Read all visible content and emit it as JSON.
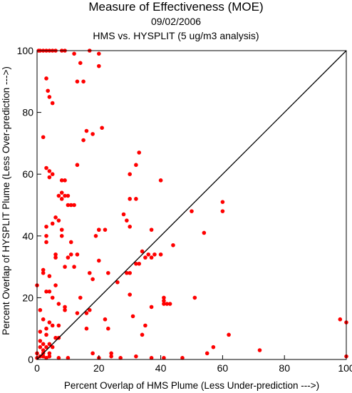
{
  "chart_data": {
    "type": "scatter",
    "title": "Measure of Effectiveness (MOE)",
    "subtitle_date": "09/02/2006",
    "subtitle_comparison": "HMS vs. HYSPLIT  (5 ug/m3 analysis)",
    "xlabel": "Percent Overlap of HMS Plume (Less Under-prediction --->)",
    "ylabel": "Percent Overlap of HYSPLIT Plume (Less Over-prediction --->)",
    "xlim": [
      0,
      100
    ],
    "ylim": [
      0,
      100
    ],
    "x_ticks": [
      "0",
      "20",
      "40",
      "60",
      "80",
      "100"
    ],
    "y_ticks": [
      "0",
      "20",
      "40",
      "60",
      "80",
      "100"
    ],
    "reference_line": "y = x",
    "grid": false,
    "point_color": "#ff0000",
    "series": [
      {
        "points": [
          [
            0.5,
            100
          ],
          [
            1,
            100
          ],
          [
            2,
            100
          ],
          [
            3,
            100
          ],
          [
            4,
            100
          ],
          [
            5,
            100
          ],
          [
            6,
            100
          ],
          [
            8,
            100
          ],
          [
            9,
            100
          ],
          [
            17,
            100
          ],
          [
            12,
            99
          ],
          [
            20,
            99
          ],
          [
            14,
            96
          ],
          [
            20,
            95
          ],
          [
            3,
            91
          ],
          [
            13,
            90
          ],
          [
            15,
            90
          ],
          [
            3.5,
            87
          ],
          [
            4,
            85
          ],
          [
            5,
            83
          ],
          [
            21,
            75
          ],
          [
            16,
            74
          ],
          [
            18,
            73
          ],
          [
            2,
            72
          ],
          [
            15,
            71
          ],
          [
            33,
            67
          ],
          [
            32,
            63
          ],
          [
            13,
            63
          ],
          [
            3,
            62
          ],
          [
            30,
            60
          ],
          [
            4,
            61
          ],
          [
            5,
            60
          ],
          [
            9,
            58
          ],
          [
            40,
            58
          ],
          [
            8,
            58
          ],
          [
            4,
            59
          ],
          [
            8,
            54
          ],
          [
            7,
            53
          ],
          [
            9,
            53
          ],
          [
            10,
            53
          ],
          [
            8,
            52
          ],
          [
            32,
            52
          ],
          [
            30,
            52
          ],
          [
            12,
            50
          ],
          [
            10,
            50
          ],
          [
            11,
            50
          ],
          [
            60,
            51
          ],
          [
            60,
            48
          ],
          [
            50,
            48
          ],
          [
            6,
            46
          ],
          [
            7,
            45
          ],
          [
            5,
            44
          ],
          [
            28,
            47
          ],
          [
            29,
            45
          ],
          [
            30,
            43
          ],
          [
            20,
            42
          ],
          [
            20,
            42
          ],
          [
            22,
            42
          ],
          [
            8,
            42
          ],
          [
            3,
            43
          ],
          [
            54,
            41
          ],
          [
            19,
            40
          ],
          [
            3,
            40
          ],
          [
            8,
            40
          ],
          [
            3,
            38
          ],
          [
            11,
            38
          ],
          [
            37,
            42
          ],
          [
            44,
            37
          ],
          [
            34,
            35
          ],
          [
            36,
            34
          ],
          [
            40,
            34
          ],
          [
            37,
            33
          ],
          [
            38,
            34
          ],
          [
            11,
            34
          ],
          [
            13,
            34
          ],
          [
            6,
            34
          ],
          [
            6,
            33
          ],
          [
            10,
            33
          ],
          [
            9,
            30
          ],
          [
            12,
            30
          ],
          [
            20,
            32
          ],
          [
            23,
            28
          ],
          [
            29,
            28
          ],
          [
            17,
            28
          ],
          [
            30,
            28
          ],
          [
            35,
            33
          ],
          [
            32,
            31
          ],
          [
            33,
            31
          ],
          [
            2,
            29
          ],
          [
            2,
            28
          ],
          [
            4,
            27
          ],
          [
            18,
            26
          ],
          [
            26,
            25
          ],
          [
            41,
            19
          ],
          [
            41,
            20
          ],
          [
            42,
            18
          ],
          [
            43,
            18
          ],
          [
            41,
            18
          ],
          [
            37,
            17
          ],
          [
            51,
            20
          ],
          [
            30,
            21
          ],
          [
            4,
            22
          ],
          [
            6,
            24
          ],
          [
            0,
            24
          ],
          [
            14,
            20
          ],
          [
            5,
            20
          ],
          [
            3,
            22
          ],
          [
            7,
            18
          ],
          [
            1,
            16
          ],
          [
            9,
            16
          ],
          [
            9,
            17
          ],
          [
            17,
            16
          ],
          [
            16,
            15
          ],
          [
            13,
            15
          ],
          [
            31,
            14
          ],
          [
            35,
            11
          ],
          [
            22,
            13
          ],
          [
            2,
            13
          ],
          [
            4,
            12
          ],
          [
            5,
            11
          ],
          [
            7,
            11
          ],
          [
            3,
            10
          ],
          [
            23,
            10
          ],
          [
            16,
            10
          ],
          [
            1,
            9
          ],
          [
            34,
            8
          ],
          [
            3,
            8
          ],
          [
            6,
            7
          ],
          [
            7,
            7
          ],
          [
            1,
            6
          ],
          [
            2,
            5
          ],
          [
            4,
            5
          ],
          [
            3,
            4
          ],
          [
            1,
            4
          ],
          [
            5,
            4
          ],
          [
            2,
            3
          ],
          [
            4,
            2
          ],
          [
            2,
            2
          ],
          [
            0,
            2
          ],
          [
            1,
            1
          ],
          [
            2,
            1
          ],
          [
            0,
            0.5
          ],
          [
            3,
            0.5
          ],
          [
            18,
            2
          ],
          [
            24,
            2
          ],
          [
            24,
            1
          ],
          [
            32,
            1
          ],
          [
            37,
            0.5
          ],
          [
            41,
            0.5
          ],
          [
            47,
            0.5
          ],
          [
            55,
            2
          ],
          [
            57,
            4
          ],
          [
            62,
            8
          ],
          [
            72,
            3
          ],
          [
            98,
            13
          ],
          [
            100,
            12
          ],
          [
            100,
            1
          ],
          [
            10,
            0.5
          ],
          [
            7,
            0.5
          ],
          [
            20,
            0.5
          ],
          [
            27,
            0.5
          ],
          [
            4,
            1
          ]
        ]
      }
    ]
  }
}
